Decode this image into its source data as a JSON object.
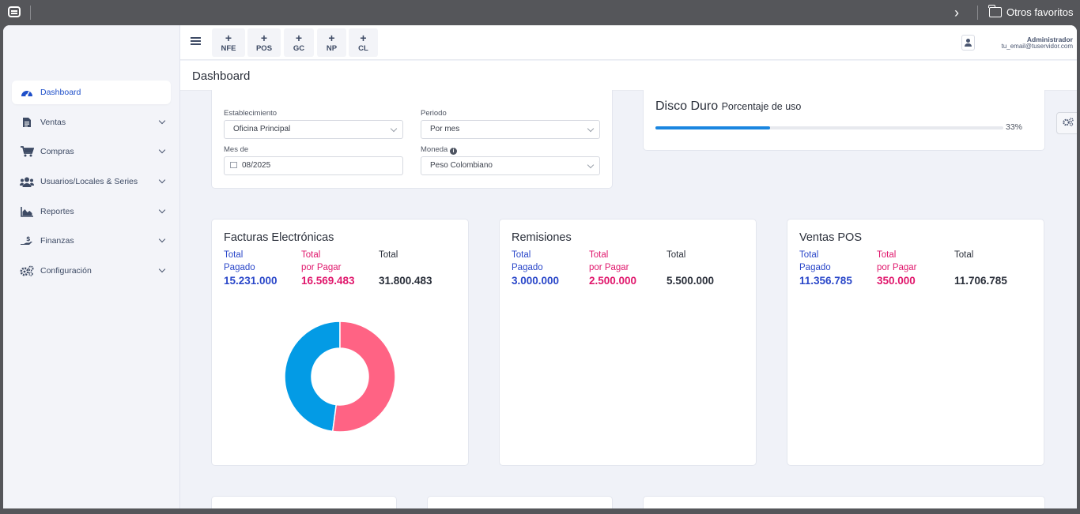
{
  "browser": {
    "bookmarks_folder": "Otros favoritos"
  },
  "sidebar": {
    "items": [
      {
        "label": "Dashboard",
        "icon": "speedometer-icon",
        "active": true
      },
      {
        "label": "Ventas",
        "icon": "document-icon"
      },
      {
        "label": "Compras",
        "icon": "cart-icon"
      },
      {
        "label": "Usuarios/Locales & Series",
        "icon": "users-icon"
      },
      {
        "label": "Reportes",
        "icon": "area-chart-icon"
      },
      {
        "label": "Finanzas",
        "icon": "hand-money-icon"
      },
      {
        "label": "Configuración",
        "icon": "cogs-icon"
      }
    ]
  },
  "header": {
    "quick_buttons": [
      {
        "plus": "+",
        "label": "NFE"
      },
      {
        "plus": "+",
        "label": "POS"
      },
      {
        "plus": "+",
        "label": "GC"
      },
      {
        "plus": "+",
        "label": "NP"
      },
      {
        "plus": "+",
        "label": "CL"
      }
    ],
    "user_name": "Administrador",
    "user_email": "tu_email@tuservidor.com"
  },
  "page": {
    "title": "Dashboard"
  },
  "filters": {
    "establecimiento_label": "Establecimiento",
    "establecimiento_value": "Oficina Principal",
    "periodo_label": "Periodo",
    "periodo_value": "Por mes",
    "mes_label": "Mes de",
    "mes_value": "08/2025",
    "moneda_label": "Moneda",
    "moneda_value": "Peso Colombiano"
  },
  "disk": {
    "title": "Disco Duro",
    "subtitle": "Porcentaje de uso",
    "percent_label": "33%",
    "percent": 0.33
  },
  "stats": [
    {
      "title": "Facturas Electrónicas",
      "paid_label_1": "Total",
      "paid_label_2": "Pagado",
      "paid_value": "15.231.000",
      "due_label_1": "Total",
      "due_label_2": "por Pagar",
      "due_value": "16.569.483",
      "total_label": "Total",
      "total_value": "31.800.483"
    },
    {
      "title": "Remisiones",
      "paid_label_1": "Total",
      "paid_label_2": "Pagado",
      "paid_value": "3.000.000",
      "due_label_1": "Total",
      "due_label_2": "por Pagar",
      "due_value": "2.500.000",
      "total_label": "Total",
      "total_value": "5.500.000"
    },
    {
      "title": "Ventas POS",
      "paid_label_1": "Total",
      "paid_label_2": "Pagado",
      "paid_value": "11.356.785",
      "due_label_1": "Total",
      "due_label_2": "por Pagar",
      "due_value": "350.000",
      "total_label": "Total",
      "total_value": "11.706.785"
    }
  ],
  "donut": {
    "values": [
      15231000,
      16569483
    ],
    "colors": [
      "#039be5",
      "#ff6384"
    ]
  },
  "colors": {
    "accent_blue": "#2a47c9",
    "accent_pink": "#e0176c",
    "progress": "#1a86e0"
  }
}
